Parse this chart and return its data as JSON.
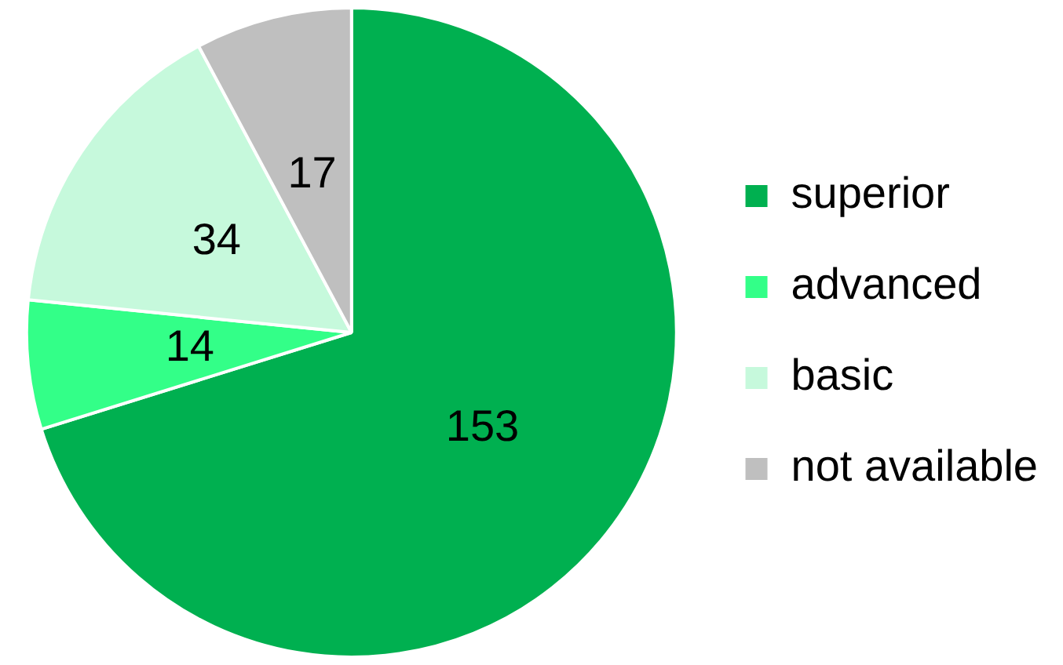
{
  "chart_data": {
    "type": "pie",
    "categories": [
      "superior",
      "advanced",
      "basic",
      "not available"
    ],
    "values": [
      153,
      14,
      34,
      17
    ],
    "colors": [
      "#00b050",
      "#33ff88",
      "#c6f9dc",
      "#bfbfbf"
    ],
    "data_labels": true,
    "legend": "right"
  }
}
